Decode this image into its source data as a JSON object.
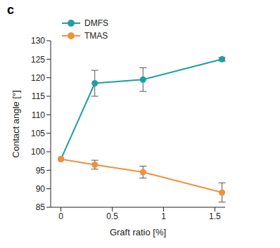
{
  "chart_data": {
    "type": "line",
    "title": "c",
    "x_label": "Graft ratio [%]",
    "y_label": "Contact angle [°]",
    "xlim": [
      -0.1,
      1.6
    ],
    "xticks": [
      0,
      0.5,
      1,
      1.5
    ],
    "ylim": [
      85,
      130
    ],
    "yticks": [
      85,
      90,
      95,
      100,
      105,
      110,
      115,
      120,
      125,
      130
    ],
    "grid": false,
    "legend": "upper left",
    "series": [
      {
        "name": "DMFS",
        "color": "#1f9ea3",
        "marker": "circle",
        "x": [
          0,
          0.33,
          0.8,
          1.57
        ],
        "values": [
          98,
          118.5,
          119.5,
          125
        ],
        "errors": [
          0,
          3.5,
          3.2,
          0.5
        ]
      },
      {
        "name": "TMAS",
        "color": "#f0913c",
        "marker": "circle",
        "x": [
          0,
          0.33,
          0.8,
          1.57
        ],
        "values": [
          98,
          96.5,
          94.5,
          89
        ],
        "errors": [
          0,
          1.2,
          1.6,
          2.6
        ]
      }
    ]
  }
}
